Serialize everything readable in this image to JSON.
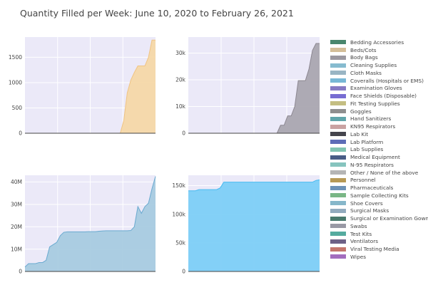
{
  "title": "Quantity Filled per Week: June 10, 2020 to February 26, 2021",
  "colors": {
    "plot_bg": "#ebe9f8",
    "grid": "#ffffff",
    "axis_line": "#444444"
  },
  "chart_data": [
    {
      "type": "area",
      "position": "top-left",
      "series_name": "Beds/Cots",
      "color": "#f5d8a8",
      "line_color": "#f0c483",
      "x_range": [
        0,
        37
      ],
      "ylim": [
        0,
        1900
      ],
      "yticks": [
        0,
        500,
        1000,
        1500
      ],
      "ytick_labels": [
        "0",
        "500",
        "1000",
        "1500"
      ],
      "x": [
        0,
        1,
        2,
        3,
        4,
        5,
        6,
        7,
        8,
        9,
        10,
        11,
        12,
        13,
        14,
        15,
        16,
        17,
        18,
        19,
        20,
        21,
        22,
        23,
        24,
        25,
        26,
        27,
        28,
        29,
        30,
        31,
        32,
        33,
        34,
        35,
        36,
        37
      ],
      "values": [
        0,
        0,
        0,
        0,
        0,
        0,
        0,
        0,
        0,
        0,
        0,
        0,
        0,
        0,
        0,
        0,
        0,
        0,
        0,
        0,
        0,
        0,
        0,
        0,
        0,
        0,
        0,
        0,
        250,
        800,
        1050,
        1200,
        1330,
        1330,
        1330,
        1500,
        1840,
        1840
      ]
    },
    {
      "type": "area",
      "position": "top-right",
      "series_name": "Body Bags",
      "color": "#aaa6b0",
      "line_color": "#8c8791",
      "x_range": [
        0,
        37
      ],
      "ylim": [
        0,
        36000
      ],
      "yticks": [
        0,
        10000,
        20000,
        30000
      ],
      "ytick_labels": [
        "0",
        "10k",
        "20k",
        "30k"
      ],
      "x": [
        0,
        1,
        2,
        3,
        4,
        5,
        6,
        7,
        8,
        9,
        10,
        11,
        12,
        13,
        14,
        15,
        16,
        17,
        18,
        19,
        20,
        21,
        22,
        23,
        24,
        25,
        26,
        27,
        28,
        29,
        30,
        31,
        32,
        33,
        34,
        35,
        36,
        37
      ],
      "values": [
        0,
        0,
        0,
        0,
        0,
        0,
        0,
        0,
        0,
        0,
        0,
        0,
        0,
        0,
        0,
        0,
        0,
        0,
        0,
        0,
        0,
        0,
        0,
        0,
        0,
        0,
        3000,
        3000,
        6500,
        6500,
        10000,
        19700,
        19700,
        19700,
        24000,
        31000,
        33600,
        33600
      ]
    },
    {
      "type": "area",
      "position": "bottom-left",
      "series_name": "Cloth Masks",
      "color": "#a8cbe0",
      "line_color": "#6aaad0",
      "x_range": [
        0,
        37
      ],
      "ylim": [
        0,
        43000000
      ],
      "yticks": [
        0,
        10000000,
        20000000,
        30000000,
        40000000
      ],
      "ytick_labels": [
        "0",
        "10M",
        "20M",
        "30M",
        "40M"
      ],
      "x": [
        0,
        1,
        2,
        3,
        4,
        5,
        6,
        7,
        8,
        9,
        10,
        11,
        12,
        13,
        14,
        15,
        16,
        17,
        18,
        19,
        20,
        21,
        22,
        23,
        24,
        25,
        26,
        27,
        28,
        29,
        30,
        31,
        32,
        33,
        34,
        35,
        36,
        37
      ],
      "values": [
        2000000,
        3500000,
        3500000,
        3500000,
        4000000,
        4000000,
        5000000,
        11000000,
        12000000,
        13000000,
        16000000,
        17500000,
        17700000,
        17700000,
        17700000,
        17700000,
        17700000,
        17700000,
        17800000,
        17800000,
        17800000,
        18000000,
        18100000,
        18200000,
        18200000,
        18200000,
        18200000,
        18200000,
        18200000,
        18200000,
        18300000,
        20000000,
        29000000,
        26000000,
        29000000,
        30500000,
        37000000,
        42500000
      ]
    },
    {
      "type": "area",
      "position": "bottom-right",
      "series_name": "Coveralls (Hospitals or EMS)",
      "color": "#7dcff7",
      "line_color": "#49bbf0",
      "x_range": [
        0,
        37
      ],
      "ylim": [
        0,
        168000
      ],
      "yticks": [
        0,
        50000,
        100000,
        150000
      ],
      "ytick_labels": [
        "0",
        "50k",
        "100k",
        "150k"
      ],
      "x": [
        0,
        1,
        2,
        3,
        4,
        5,
        6,
        7,
        8,
        9,
        10,
        11,
        12,
        13,
        14,
        15,
        16,
        17,
        18,
        19,
        20,
        21,
        22,
        23,
        24,
        25,
        26,
        27,
        28,
        29,
        30,
        31,
        32,
        33,
        34,
        35,
        36,
        37
      ],
      "values": [
        141000,
        141000,
        141000,
        143000,
        143000,
        143000,
        143000,
        143000,
        143000,
        146000,
        156000,
        156000,
        156000,
        156000,
        156000,
        156000,
        156000,
        156000,
        156000,
        156000,
        156000,
        156000,
        156000,
        156000,
        156000,
        156000,
        156000,
        156000,
        156000,
        156000,
        156000,
        156000,
        156000,
        156000,
        156000,
        156000,
        159000,
        160000
      ]
    }
  ],
  "legend": [
    {
      "label": "Bedding Accessories",
      "color": "#3f8f6f"
    },
    {
      "label": "Beds/Cots",
      "color": "#f5d8a8"
    },
    {
      "label": "Body Bags",
      "color": "#aaa6b0"
    },
    {
      "label": "Cleaning Supplies",
      "color": "#8fd4ee"
    },
    {
      "label": "Cloth Masks",
      "color": "#a8cbe0"
    },
    {
      "label": "Coveralls (Hospitals or EMS)",
      "color": "#7dcff7"
    },
    {
      "label": "Examination Gloves",
      "color": "#8f7fe0"
    },
    {
      "label": "Face Shields (Disposable)",
      "color": "#7b6ff2"
    },
    {
      "label": "Fit Testing Supplies",
      "color": "#e0d78a"
    },
    {
      "label": "Goggles",
      "color": "#9a9a9a"
    },
    {
      "label": "Hand Sanitizers",
      "color": "#5fb7bd"
    },
    {
      "label": "KN95 Respirators",
      "color": "#e6b3b3"
    },
    {
      "label": "Lab Kit",
      "color": "#3a3a44"
    },
    {
      "label": "Lab Platform",
      "color": "#5a6fcf"
    },
    {
      "label": "Lab Supplies",
      "color": "#8ae0c8"
    },
    {
      "label": "Medical Equipment",
      "color": "#3f5a8f"
    },
    {
      "label": "N-95 Respirators",
      "color": "#8fe0d8"
    },
    {
      "label": "Other / None of the above",
      "color": "#cccccc"
    },
    {
      "label": "Personnel",
      "color": "#cfa84f"
    },
    {
      "label": "Pharmaceuticals",
      "color": "#6f9fcf"
    },
    {
      "label": "Sample Collecting Kits",
      "color": "#7fcf8f"
    },
    {
      "label": "Shoe Covers",
      "color": "#8fcfe8"
    },
    {
      "label": "Surgical Masks",
      "color": "#9fbfd8"
    },
    {
      "label": "Surgical or Examination Gowns",
      "color": "#3f7f6f"
    },
    {
      "label": "Swabs",
      "color": "#a8a8b8"
    },
    {
      "label": "Test Kits",
      "color": "#4fbfaf"
    },
    {
      "label": "Ventilators",
      "color": "#6f5f8f"
    },
    {
      "label": "Viral Testing Media",
      "color": "#e07a6f"
    },
    {
      "label": "Wipes",
      "color": "#b56fd8"
    }
  ]
}
